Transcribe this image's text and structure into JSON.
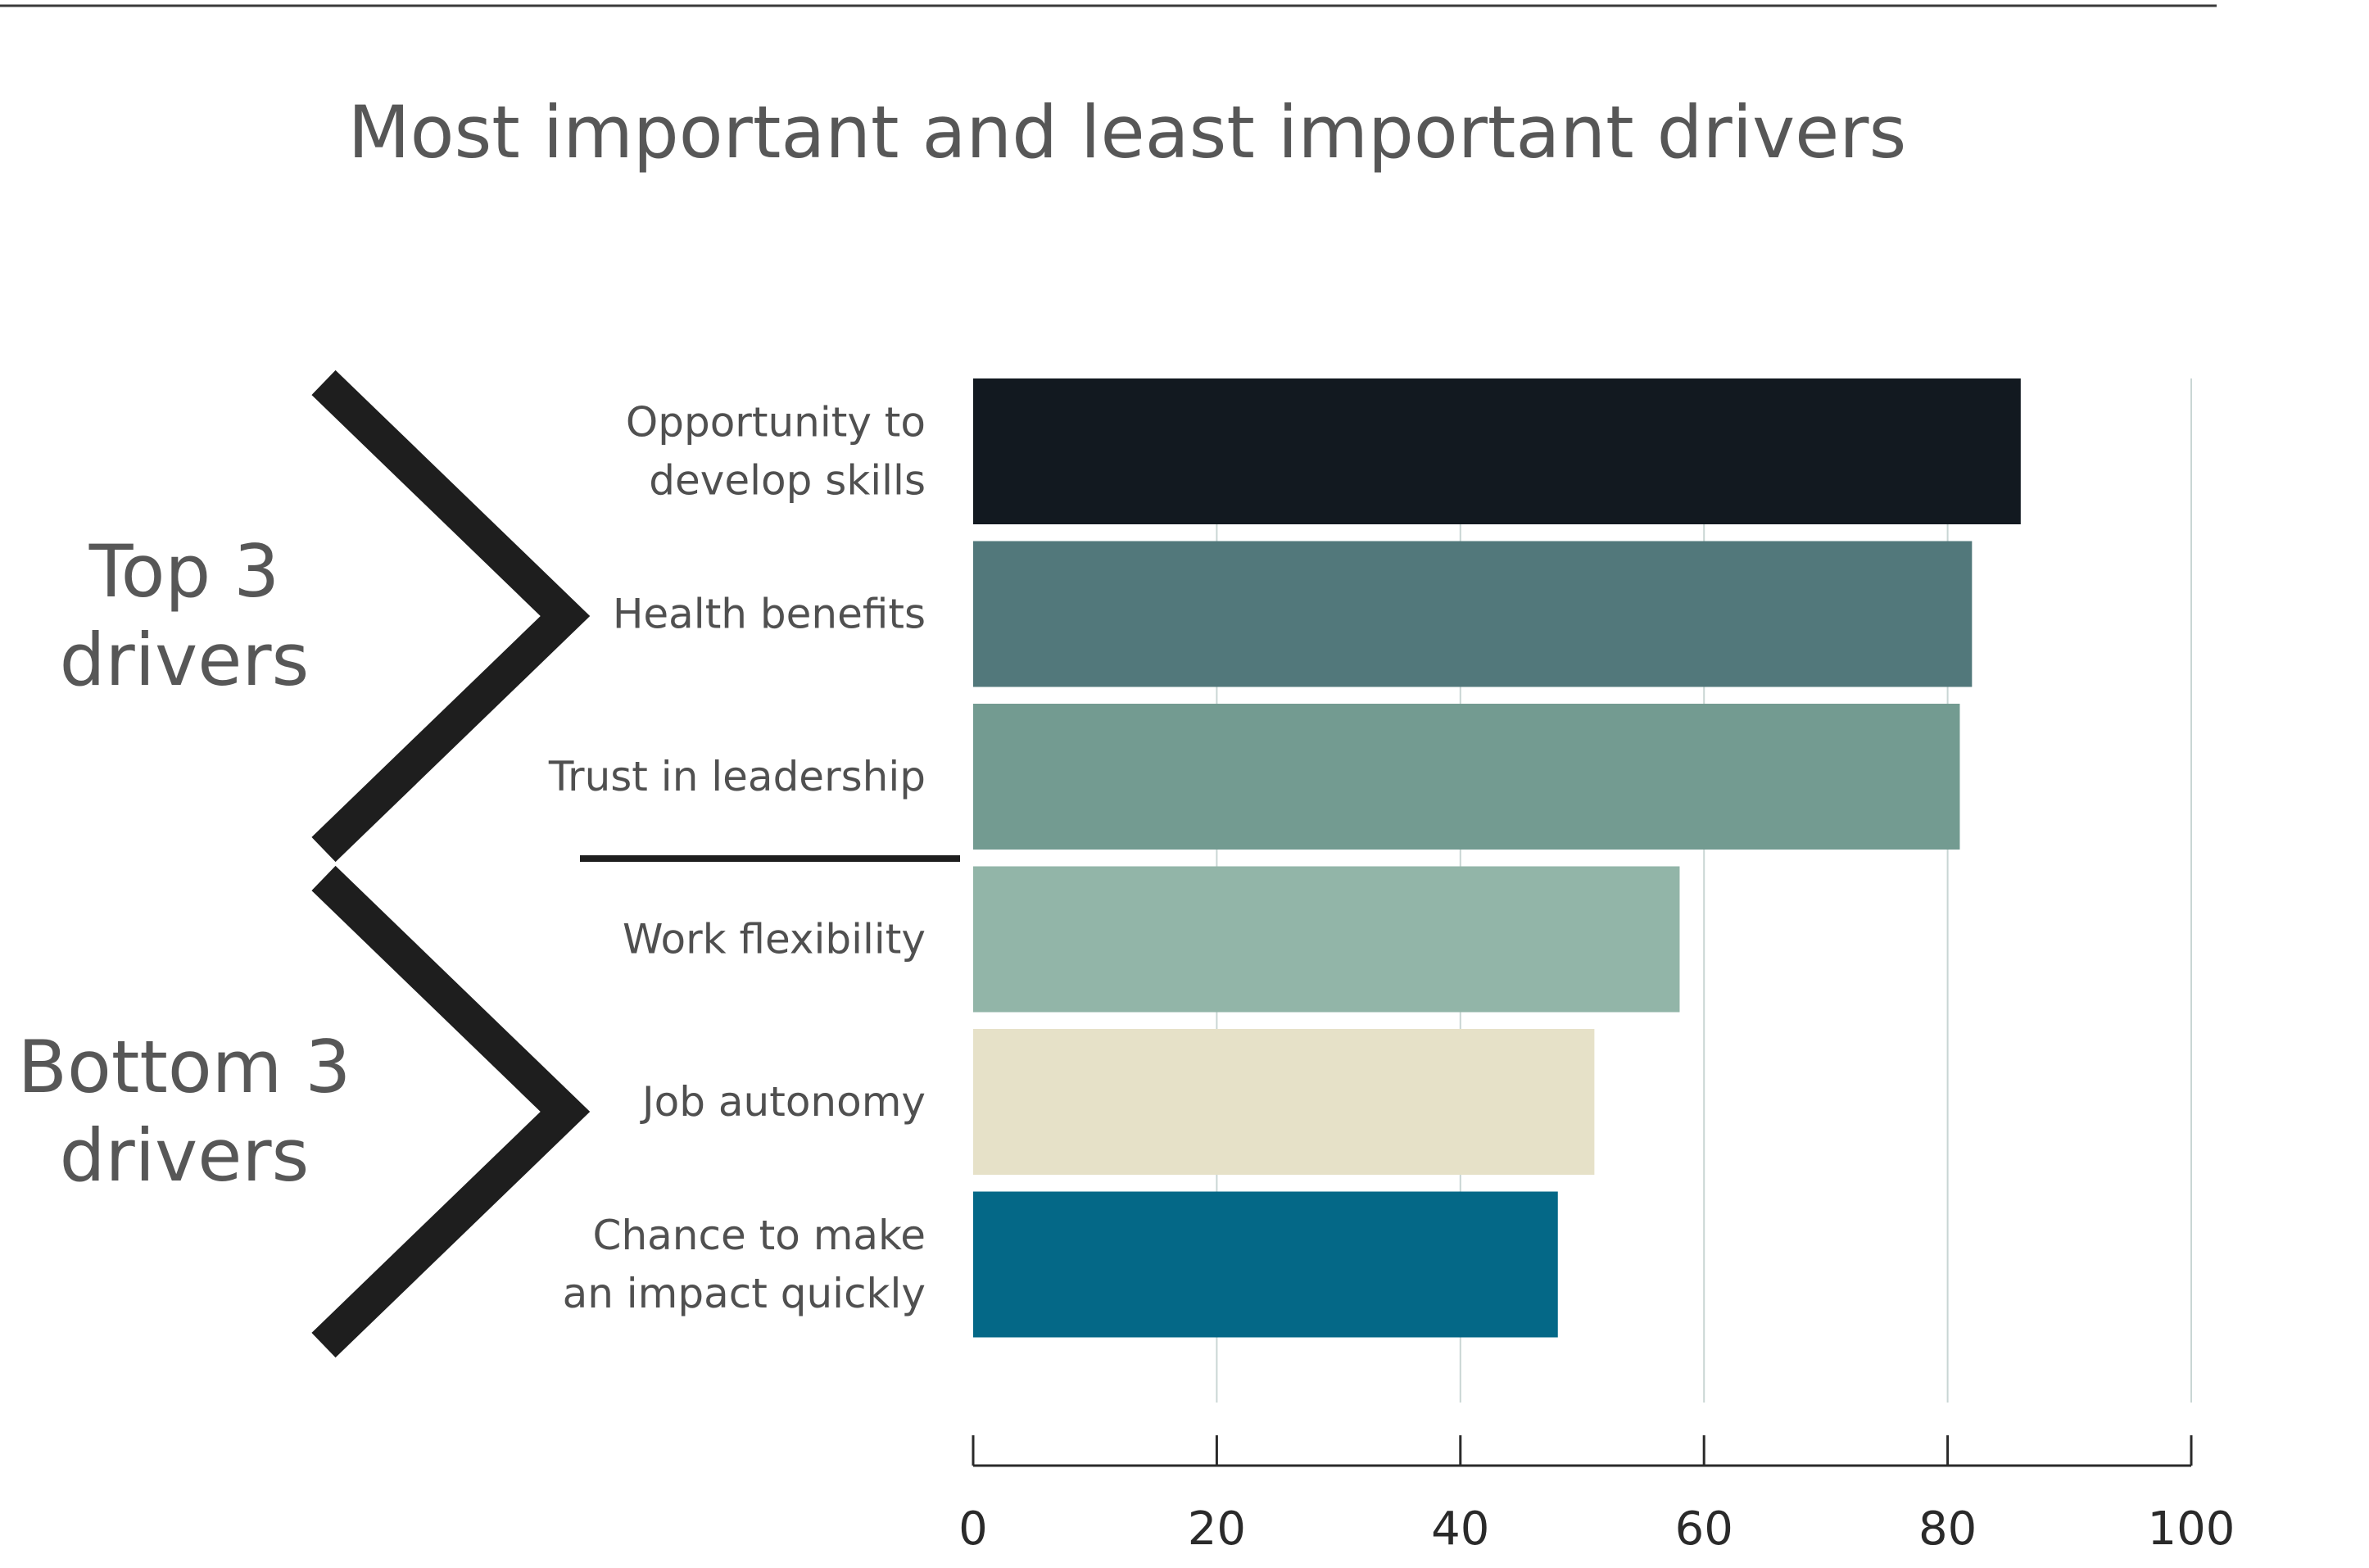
{
  "chart_data": {
    "type": "bar",
    "orientation": "horizontal",
    "title": "Most important and least important drivers",
    "categories": [
      [
        "Opportunity to",
        "develop skills"
      ],
      [
        "Health benefits"
      ],
      [
        "Trust in leadership"
      ],
      [
        "Work flexibility"
      ],
      [
        "Job autonomy"
      ],
      [
        "Chance to make",
        "an impact quickly"
      ]
    ],
    "values": [
      86,
      82,
      81,
      58,
      51,
      48
    ],
    "colors": [
      "#121920",
      "#52787b",
      "#739b91",
      "#92b5a8",
      "#e6e1c8",
      "#046887"
    ],
    "xlim": [
      0,
      100
    ],
    "xticks": [
      "0",
      "20",
      "40",
      "60",
      "80",
      "100"
    ],
    "grid": true,
    "groups": [
      {
        "label": [
          "Top 3",
          "drivers"
        ],
        "range": [
          0,
          2
        ]
      },
      {
        "label": [
          "Bottom 3",
          "drivers"
        ],
        "range": [
          3,
          5
        ]
      }
    ]
  }
}
